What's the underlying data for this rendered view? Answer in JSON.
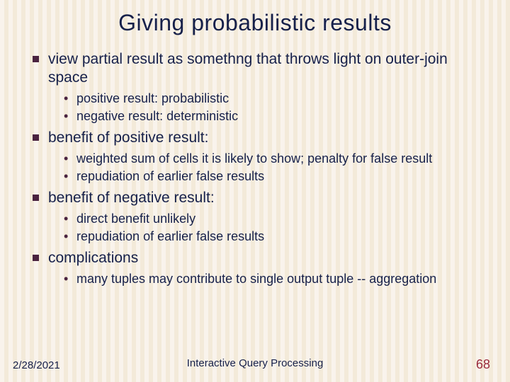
{
  "title": "Giving probabilistic results",
  "bullets": [
    {
      "text": "view  partial result as somethng that throws light on outer-join space",
      "sub": [
        "positive result: probabilistic",
        "negative result: deterministic"
      ]
    },
    {
      "text": "benefit of positive result:",
      "sub": [
        "weighted sum of cells it is likely to show; penalty for false result",
        "repudiation of earlier false results"
      ]
    },
    {
      "text": "benefit of negative result:",
      "sub": [
        "direct benefit unlikely",
        "repudiation of earlier false results"
      ]
    },
    {
      "text": "complications",
      "sub": [
        "many tuples may contribute to single output tuple -- aggregation"
      ]
    }
  ],
  "footer": {
    "date": "2/28/2021",
    "center": "Interactive Query Processing",
    "page": "68"
  },
  "colors": {
    "text": "#16204a",
    "square_bullet": "#4a2340",
    "page_num": "#9a2b3a",
    "stripe_light": "#f9f3ec",
    "stripe_dark": "#f3ead9"
  }
}
